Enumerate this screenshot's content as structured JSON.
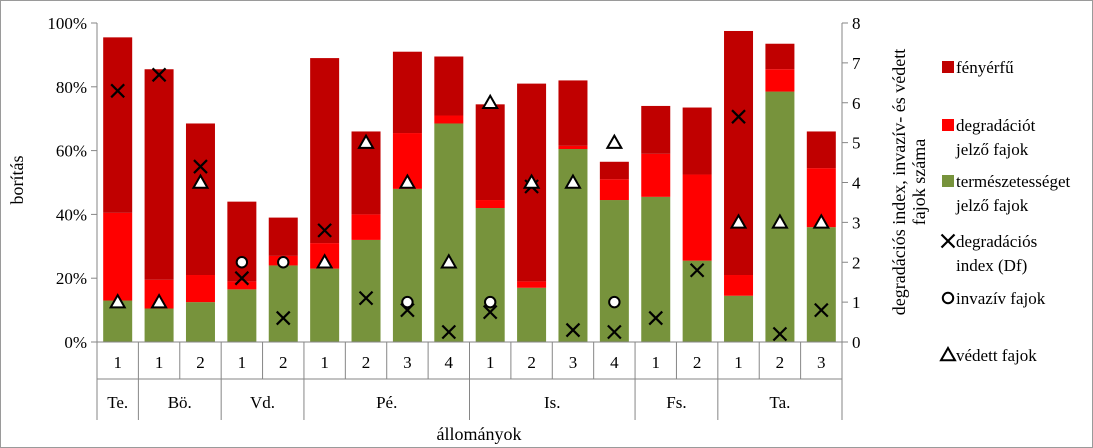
{
  "chart_data": {
    "type": "bar",
    "subtype": "stacked-bar-with-markers",
    "xlabel": "állományok",
    "ylabel": "borítás",
    "y2label_line1": "degradációs index, invazív- és védett",
    "y2label_line2": "fajok száma",
    "ylim": [
      0,
      100
    ],
    "y_ticks": [
      "0%",
      "20%",
      "40%",
      "60%",
      "80%",
      "100%"
    ],
    "y2lim": [
      0,
      8
    ],
    "y2_ticks": [
      "0",
      "1",
      "2",
      "3",
      "4",
      "5",
      "6",
      "7",
      "8"
    ],
    "grid": false,
    "legend_position": "right",
    "groups": [
      {
        "label": "Te.",
        "stands": [
          "1"
        ]
      },
      {
        "label": "Bö.",
        "stands": [
          "1",
          "2"
        ]
      },
      {
        "label": "Vd.",
        "stands": [
          "1",
          "2"
        ]
      },
      {
        "label": "Pé.",
        "stands": [
          "1",
          "2",
          "3",
          "4"
        ]
      },
      {
        "label": "Is.",
        "stands": [
          "1",
          "2",
          "3",
          "4"
        ]
      },
      {
        "label": "Fs.",
        "stands": [
          "1",
          "2"
        ]
      },
      {
        "label": "Ta.",
        "stands": [
          "1",
          "2",
          "3"
        ]
      }
    ],
    "series": [
      {
        "name": "természetességet jelző fajok",
        "color": "#77933c",
        "axis": "left",
        "values": [
          13,
          10.5,
          12.5,
          16.5,
          24,
          23,
          32,
          48,
          68.5,
          42,
          17,
          60.5,
          44.5,
          45.5,
          25.5,
          14.5,
          78.5,
          36
        ]
      },
      {
        "name": "degradációt jelző fajok",
        "color": "#ff0000",
        "axis": "left",
        "values": [
          27.5,
          9,
          8.5,
          2.5,
          3,
          8,
          8,
          17.5,
          2.5,
          2.5,
          2,
          1,
          6.5,
          13.5,
          27,
          6.5,
          7,
          18.5
        ]
      },
      {
        "name": "fényérfű",
        "color": "#c00000",
        "axis": "left",
        "values": [
          55,
          66,
          47.5,
          25,
          12,
          58,
          26,
          25.5,
          18.5,
          30,
          62,
          20.5,
          5.5,
          15,
          21,
          76.5,
          8,
          11.5
        ]
      },
      {
        "name": "degradációs index (Df)",
        "marker": "x",
        "axis": "right",
        "values": [
          6.3,
          6.7,
          4.4,
          1.6,
          0.6,
          2.8,
          1.1,
          0.8,
          0.25,
          0.75,
          3.9,
          0.3,
          0.25,
          0.6,
          1.8,
          5.65,
          0.2,
          0.8
        ]
      },
      {
        "name": "invazív fajok",
        "marker": "circle",
        "axis": "right",
        "values": [
          null,
          null,
          null,
          2,
          2,
          null,
          null,
          1,
          null,
          1,
          null,
          null,
          1,
          null,
          null,
          null,
          null,
          null
        ]
      },
      {
        "name": "védett fajok",
        "marker": "triangle",
        "axis": "right",
        "values": [
          1,
          1,
          4,
          null,
          null,
          2,
          5,
          4,
          2,
          6,
          4,
          4,
          5,
          null,
          null,
          3,
          3,
          3
        ]
      }
    ]
  },
  "legend": [
    {
      "key": "fenyerfu",
      "line1": "fényérfű",
      "line2": "",
      "color": "#c00000",
      "marker": "square"
    },
    {
      "key": "degradaciot",
      "line1": "degradációt",
      "line2": "jelző fajok",
      "color": "#ff0000",
      "marker": "square"
    },
    {
      "key": "termeszetes",
      "line1": "természetességet",
      "line2": "jelző fajok",
      "color": "#77933c",
      "marker": "square"
    },
    {
      "key": "df",
      "line1": "degradációs",
      "line2": "index (Df)",
      "color": "#000000",
      "marker": "x"
    },
    {
      "key": "invaziv",
      "line1": "invazív fajok",
      "line2": "",
      "color": "#000000",
      "marker": "circle"
    },
    {
      "key": "vedett",
      "line1": "védett fajok",
      "line2": "",
      "color": "#000000",
      "marker": "triangle"
    }
  ]
}
